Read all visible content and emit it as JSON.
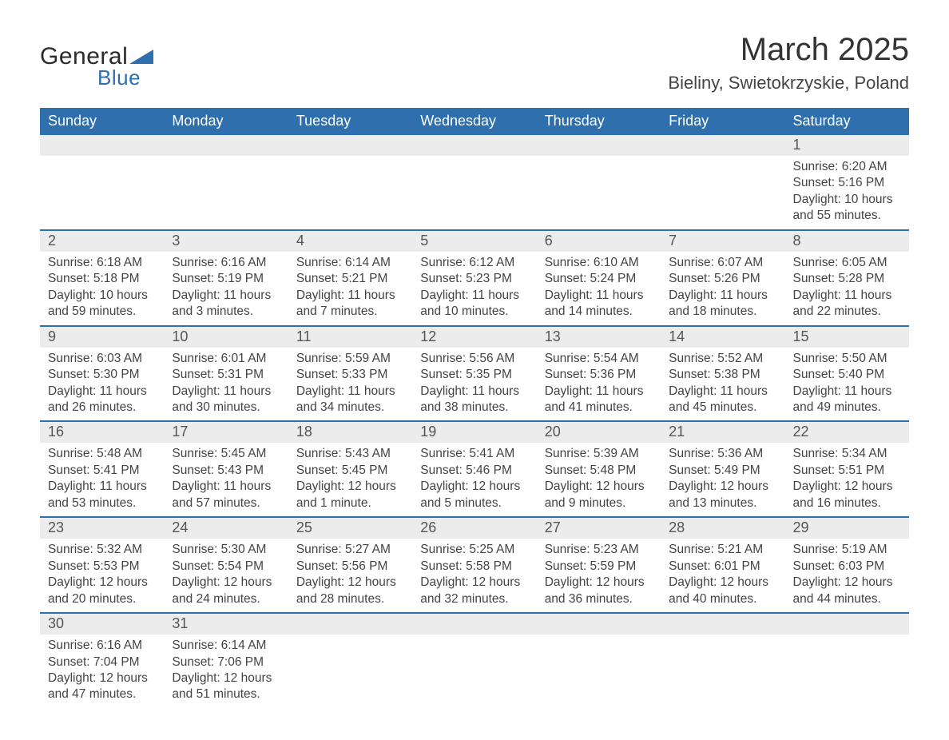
{
  "logo": {
    "text_general": "General",
    "text_blue": "Blue",
    "triangle_color": "#2f6fad"
  },
  "header": {
    "month_title": "March 2025",
    "location": "Bieliny, Swietokrzyskie, Poland"
  },
  "colors": {
    "header_bg": "#2f6fad",
    "header_text": "#ffffff",
    "daynum_bg": "#ececec",
    "row_divider": "#2f6fad",
    "body_text": "#444444"
  },
  "typography": {
    "month_title_fontsize": 40,
    "location_fontsize": 22,
    "dayheader_fontsize": 18,
    "daynum_fontsize": 18,
    "detail_fontsize": 15.5
  },
  "day_headers": [
    "Sunday",
    "Monday",
    "Tuesday",
    "Wednesday",
    "Thursday",
    "Friday",
    "Saturday"
  ],
  "weeks": [
    [
      null,
      null,
      null,
      null,
      null,
      null,
      {
        "n": "1",
        "sr": "Sunrise: 6:20 AM",
        "ss": "Sunset: 5:16 PM",
        "d1": "Daylight: 10 hours",
        "d2": "and 55 minutes."
      }
    ],
    [
      {
        "n": "2",
        "sr": "Sunrise: 6:18 AM",
        "ss": "Sunset: 5:18 PM",
        "d1": "Daylight: 10 hours",
        "d2": "and 59 minutes."
      },
      {
        "n": "3",
        "sr": "Sunrise: 6:16 AM",
        "ss": "Sunset: 5:19 PM",
        "d1": "Daylight: 11 hours",
        "d2": "and 3 minutes."
      },
      {
        "n": "4",
        "sr": "Sunrise: 6:14 AM",
        "ss": "Sunset: 5:21 PM",
        "d1": "Daylight: 11 hours",
        "d2": "and 7 minutes."
      },
      {
        "n": "5",
        "sr": "Sunrise: 6:12 AM",
        "ss": "Sunset: 5:23 PM",
        "d1": "Daylight: 11 hours",
        "d2": "and 10 minutes."
      },
      {
        "n": "6",
        "sr": "Sunrise: 6:10 AM",
        "ss": "Sunset: 5:24 PM",
        "d1": "Daylight: 11 hours",
        "d2": "and 14 minutes."
      },
      {
        "n": "7",
        "sr": "Sunrise: 6:07 AM",
        "ss": "Sunset: 5:26 PM",
        "d1": "Daylight: 11 hours",
        "d2": "and 18 minutes."
      },
      {
        "n": "8",
        "sr": "Sunrise: 6:05 AM",
        "ss": "Sunset: 5:28 PM",
        "d1": "Daylight: 11 hours",
        "d2": "and 22 minutes."
      }
    ],
    [
      {
        "n": "9",
        "sr": "Sunrise: 6:03 AM",
        "ss": "Sunset: 5:30 PM",
        "d1": "Daylight: 11 hours",
        "d2": "and 26 minutes."
      },
      {
        "n": "10",
        "sr": "Sunrise: 6:01 AM",
        "ss": "Sunset: 5:31 PM",
        "d1": "Daylight: 11 hours",
        "d2": "and 30 minutes."
      },
      {
        "n": "11",
        "sr": "Sunrise: 5:59 AM",
        "ss": "Sunset: 5:33 PM",
        "d1": "Daylight: 11 hours",
        "d2": "and 34 minutes."
      },
      {
        "n": "12",
        "sr": "Sunrise: 5:56 AM",
        "ss": "Sunset: 5:35 PM",
        "d1": "Daylight: 11 hours",
        "d2": "and 38 minutes."
      },
      {
        "n": "13",
        "sr": "Sunrise: 5:54 AM",
        "ss": "Sunset: 5:36 PM",
        "d1": "Daylight: 11 hours",
        "d2": "and 41 minutes."
      },
      {
        "n": "14",
        "sr": "Sunrise: 5:52 AM",
        "ss": "Sunset: 5:38 PM",
        "d1": "Daylight: 11 hours",
        "d2": "and 45 minutes."
      },
      {
        "n": "15",
        "sr": "Sunrise: 5:50 AM",
        "ss": "Sunset: 5:40 PM",
        "d1": "Daylight: 11 hours",
        "d2": "and 49 minutes."
      }
    ],
    [
      {
        "n": "16",
        "sr": "Sunrise: 5:48 AM",
        "ss": "Sunset: 5:41 PM",
        "d1": "Daylight: 11 hours",
        "d2": "and 53 minutes."
      },
      {
        "n": "17",
        "sr": "Sunrise: 5:45 AM",
        "ss": "Sunset: 5:43 PM",
        "d1": "Daylight: 11 hours",
        "d2": "and 57 minutes."
      },
      {
        "n": "18",
        "sr": "Sunrise: 5:43 AM",
        "ss": "Sunset: 5:45 PM",
        "d1": "Daylight: 12 hours",
        "d2": "and 1 minute."
      },
      {
        "n": "19",
        "sr": "Sunrise: 5:41 AM",
        "ss": "Sunset: 5:46 PM",
        "d1": "Daylight: 12 hours",
        "d2": "and 5 minutes."
      },
      {
        "n": "20",
        "sr": "Sunrise: 5:39 AM",
        "ss": "Sunset: 5:48 PM",
        "d1": "Daylight: 12 hours",
        "d2": "and 9 minutes."
      },
      {
        "n": "21",
        "sr": "Sunrise: 5:36 AM",
        "ss": "Sunset: 5:49 PM",
        "d1": "Daylight: 12 hours",
        "d2": "and 13 minutes."
      },
      {
        "n": "22",
        "sr": "Sunrise: 5:34 AM",
        "ss": "Sunset: 5:51 PM",
        "d1": "Daylight: 12 hours",
        "d2": "and 16 minutes."
      }
    ],
    [
      {
        "n": "23",
        "sr": "Sunrise: 5:32 AM",
        "ss": "Sunset: 5:53 PM",
        "d1": "Daylight: 12 hours",
        "d2": "and 20 minutes."
      },
      {
        "n": "24",
        "sr": "Sunrise: 5:30 AM",
        "ss": "Sunset: 5:54 PM",
        "d1": "Daylight: 12 hours",
        "d2": "and 24 minutes."
      },
      {
        "n": "25",
        "sr": "Sunrise: 5:27 AM",
        "ss": "Sunset: 5:56 PM",
        "d1": "Daylight: 12 hours",
        "d2": "and 28 minutes."
      },
      {
        "n": "26",
        "sr": "Sunrise: 5:25 AM",
        "ss": "Sunset: 5:58 PM",
        "d1": "Daylight: 12 hours",
        "d2": "and 32 minutes."
      },
      {
        "n": "27",
        "sr": "Sunrise: 5:23 AM",
        "ss": "Sunset: 5:59 PM",
        "d1": "Daylight: 12 hours",
        "d2": "and 36 minutes."
      },
      {
        "n": "28",
        "sr": "Sunrise: 5:21 AM",
        "ss": "Sunset: 6:01 PM",
        "d1": "Daylight: 12 hours",
        "d2": "and 40 minutes."
      },
      {
        "n": "29",
        "sr": "Sunrise: 5:19 AM",
        "ss": "Sunset: 6:03 PM",
        "d1": "Daylight: 12 hours",
        "d2": "and 44 minutes."
      }
    ],
    [
      {
        "n": "30",
        "sr": "Sunrise: 6:16 AM",
        "ss": "Sunset: 7:04 PM",
        "d1": "Daylight: 12 hours",
        "d2": "and 47 minutes."
      },
      {
        "n": "31",
        "sr": "Sunrise: 6:14 AM",
        "ss": "Sunset: 7:06 PM",
        "d1": "Daylight: 12 hours",
        "d2": "and 51 minutes."
      },
      null,
      null,
      null,
      null,
      null
    ]
  ]
}
